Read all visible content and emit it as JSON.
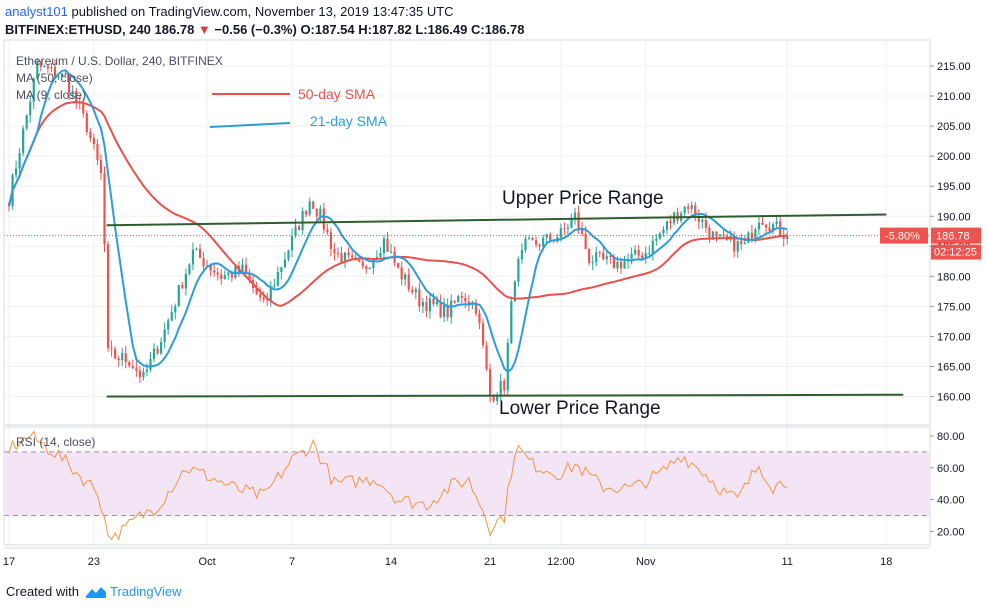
{
  "header": {
    "author": "analyst101",
    "published_text": " published on TradingView.com, November 13, 2019 13:47:35 UTC",
    "symbol_interval": "BITFINEX:ETHUSD, 240 ",
    "last": "186.78",
    "change": "−0.56 (−0.3%)",
    "ohlc": "O:187.54 H:187.82 L:186.49 C:186.78"
  },
  "legend": {
    "title": "Ethereum / U.S. Dollar, 240, BITFINEX",
    "ma50": "MA (50, close)",
    "ma9": "MA (9, close)"
  },
  "annotations": {
    "sma50": "50-day SMA",
    "sma21": "21-day SMA",
    "upper": "Upper Price Range",
    "lower": "Lower Price Range"
  },
  "badges": {
    "pct": "-5.80%",
    "price": "186.78",
    "timer": "02:12:25"
  },
  "rsi_label": "RSI (14, close)",
  "footer": {
    "created": "Created with",
    "brand": "TradingView"
  },
  "colors": {
    "up": "#26a69a",
    "down": "#ef5350",
    "sma50": "#e8514c",
    "sma21": "#2e9cdb",
    "trend": "#2e5e2e",
    "rsi_line": "#f29447",
    "rsi_band": "#f3e5f5",
    "rsi_bounds": "#9c8ca6"
  },
  "chart_data": {
    "type": "candlestick",
    "symbol": "BITFINEX:ETHUSD",
    "interval": "240",
    "ylim": [
      156,
      219
    ],
    "y_ticks": [
      215,
      210,
      205,
      200,
      195,
      190,
      185,
      180,
      175,
      170,
      165,
      160
    ],
    "x_ticks": [
      "17",
      "23",
      "Oct",
      "7",
      "14",
      "21",
      "12:00",
      "Nov",
      "11",
      "18"
    ],
    "close_keypoints": [
      {
        "day": 0,
        "close": 193
      },
      {
        "day": 2,
        "close": 215
      },
      {
        "day": 4,
        "close": 213
      },
      {
        "day": 5.5,
        "close": 205
      },
      {
        "day": 6.6,
        "close": 196
      },
      {
        "day": 7,
        "close": 167
      },
      {
        "day": 8.5,
        "close": 166
      },
      {
        "day": 9.5,
        "close": 163
      },
      {
        "day": 11,
        "close": 171
      },
      {
        "day": 13,
        "close": 184
      },
      {
        "day": 15,
        "close": 180
      },
      {
        "day": 16.5,
        "close": 181
      },
      {
        "day": 18,
        "close": 175
      },
      {
        "day": 20,
        "close": 186
      },
      {
        "day": 21.3,
        "close": 193
      },
      {
        "day": 22,
        "close": 190
      },
      {
        "day": 23,
        "close": 184
      },
      {
        "day": 25,
        "close": 181
      },
      {
        "day": 26.5,
        "close": 186
      },
      {
        "day": 27.5,
        "close": 181
      },
      {
        "day": 29,
        "close": 176
      },
      {
        "day": 31,
        "close": 174
      },
      {
        "day": 32,
        "close": 177
      },
      {
        "day": 33,
        "close": 175
      },
      {
        "day": 33.5,
        "close": 168
      },
      {
        "day": 34,
        "close": 160
      },
      {
        "day": 35,
        "close": 162
      },
      {
        "day": 35.7,
        "close": 180
      },
      {
        "day": 36.5,
        "close": 185
      },
      {
        "day": 38,
        "close": 186
      },
      {
        "day": 39,
        "close": 187
      },
      {
        "day": 40,
        "close": 190
      },
      {
        "day": 41,
        "close": 183
      },
      {
        "day": 43,
        "close": 182
      },
      {
        "day": 45,
        "close": 184
      },
      {
        "day": 47,
        "close": 190
      },
      {
        "day": 48,
        "close": 192
      },
      {
        "day": 49,
        "close": 189
      },
      {
        "day": 50,
        "close": 186
      },
      {
        "day": 52,
        "close": 185
      },
      {
        "day": 53,
        "close": 190
      },
      {
        "day": 55,
        "close": 186.78
      }
    ],
    "upper_range_line": {
      "start": [
        -1.4,
        188.5
      ],
      "end": [
        56.8,
        190.3
      ]
    },
    "lower_range_line": {
      "start": [
        -1.4,
        160.0
      ],
      "end": [
        58,
        160.3
      ]
    },
    "last_price": 186.78,
    "rsi": {
      "period": 14,
      "ylim": [
        13,
        85
      ],
      "y_ticks": [
        80,
        60,
        40,
        20
      ],
      "bands": [
        70,
        30
      ],
      "keypoints": [
        {
          "day": 0,
          "rsi": 72
        },
        {
          "day": 1.5,
          "rsi": 80
        },
        {
          "day": 3.5,
          "rsi": 68
        },
        {
          "day": 5,
          "rsi": 55
        },
        {
          "day": 6.3,
          "rsi": 45
        },
        {
          "day": 7,
          "rsi": 18
        },
        {
          "day": 7.5,
          "rsi": 16
        },
        {
          "day": 9,
          "rsi": 28
        },
        {
          "day": 10.5,
          "rsi": 36
        },
        {
          "day": 12.5,
          "rsi": 60
        },
        {
          "day": 14,
          "rsi": 55
        },
        {
          "day": 16,
          "rsi": 47
        },
        {
          "day": 18,
          "rsi": 42
        },
        {
          "day": 20,
          "rsi": 65
        },
        {
          "day": 21.5,
          "rsi": 75
        },
        {
          "day": 23,
          "rsi": 50
        },
        {
          "day": 26,
          "rsi": 53
        },
        {
          "day": 27.5,
          "rsi": 40
        },
        {
          "day": 29.5,
          "rsi": 37
        },
        {
          "day": 31.5,
          "rsi": 50
        },
        {
          "day": 32.5,
          "rsi": 52
        },
        {
          "day": 33.6,
          "rsi": 32
        },
        {
          "day": 34,
          "rsi": 22
        },
        {
          "day": 35,
          "rsi": 30
        },
        {
          "day": 35.8,
          "rsi": 74
        },
        {
          "day": 37,
          "rsi": 62
        },
        {
          "day": 39,
          "rsi": 56
        },
        {
          "day": 40,
          "rsi": 62
        },
        {
          "day": 42,
          "rsi": 48
        },
        {
          "day": 44,
          "rsi": 47
        },
        {
          "day": 46,
          "rsi": 56
        },
        {
          "day": 47.5,
          "rsi": 68
        },
        {
          "day": 49,
          "rsi": 58
        },
        {
          "day": 50.5,
          "rsi": 45
        },
        {
          "day": 51.5,
          "rsi": 40
        },
        {
          "day": 53,
          "rsi": 62
        },
        {
          "day": 54,
          "rsi": 48
        },
        {
          "day": 55,
          "rsi": 52
        }
      ]
    }
  }
}
